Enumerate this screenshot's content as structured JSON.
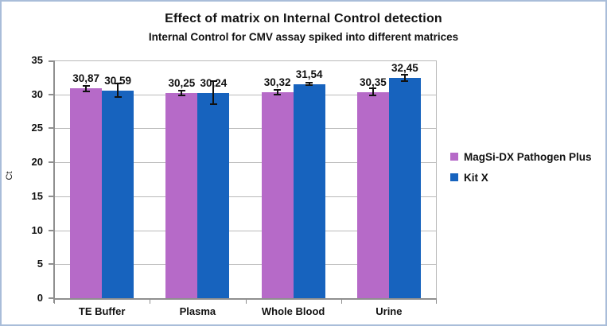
{
  "chart_data": {
    "type": "bar",
    "title": "Effect of matrix on Internal Control detection",
    "subtitle": "Internal Control for CMV assay spiked into different matrices",
    "ylabel": "Ct",
    "xlabel": "",
    "ylim": [
      0,
      35
    ],
    "yticks": [
      0,
      5,
      10,
      15,
      20,
      25,
      30,
      35
    ],
    "grid": true,
    "legend_position": "right",
    "categories": [
      "TE Buffer",
      "Plasma",
      "Whole Blood",
      "Urine"
    ],
    "series": [
      {
        "name": "MagSi-DX Pathogen Plus",
        "color": "#b66ac8",
        "values": [
          30.87,
          30.25,
          30.32,
          30.35
        ],
        "value_labels": [
          "30,87",
          "30,25",
          "30,32",
          "30,35"
        ],
        "error_bars": [
          0.4,
          0.35,
          0.3,
          0.55
        ]
      },
      {
        "name": "Kit X",
        "color": "#1763be",
        "values": [
          30.59,
          30.24,
          31.54,
          32.45
        ],
        "value_labels": [
          "30,59",
          "30,24",
          "31,54",
          "32,45"
        ],
        "error_bars": [
          1.0,
          1.7,
          0.15,
          0.5
        ]
      }
    ],
    "colors": {
      "grid": "#b9b9b9",
      "axis": "#8f8f8f",
      "error_bar": "#111111",
      "frame_border": "#a9bdd9"
    }
  }
}
